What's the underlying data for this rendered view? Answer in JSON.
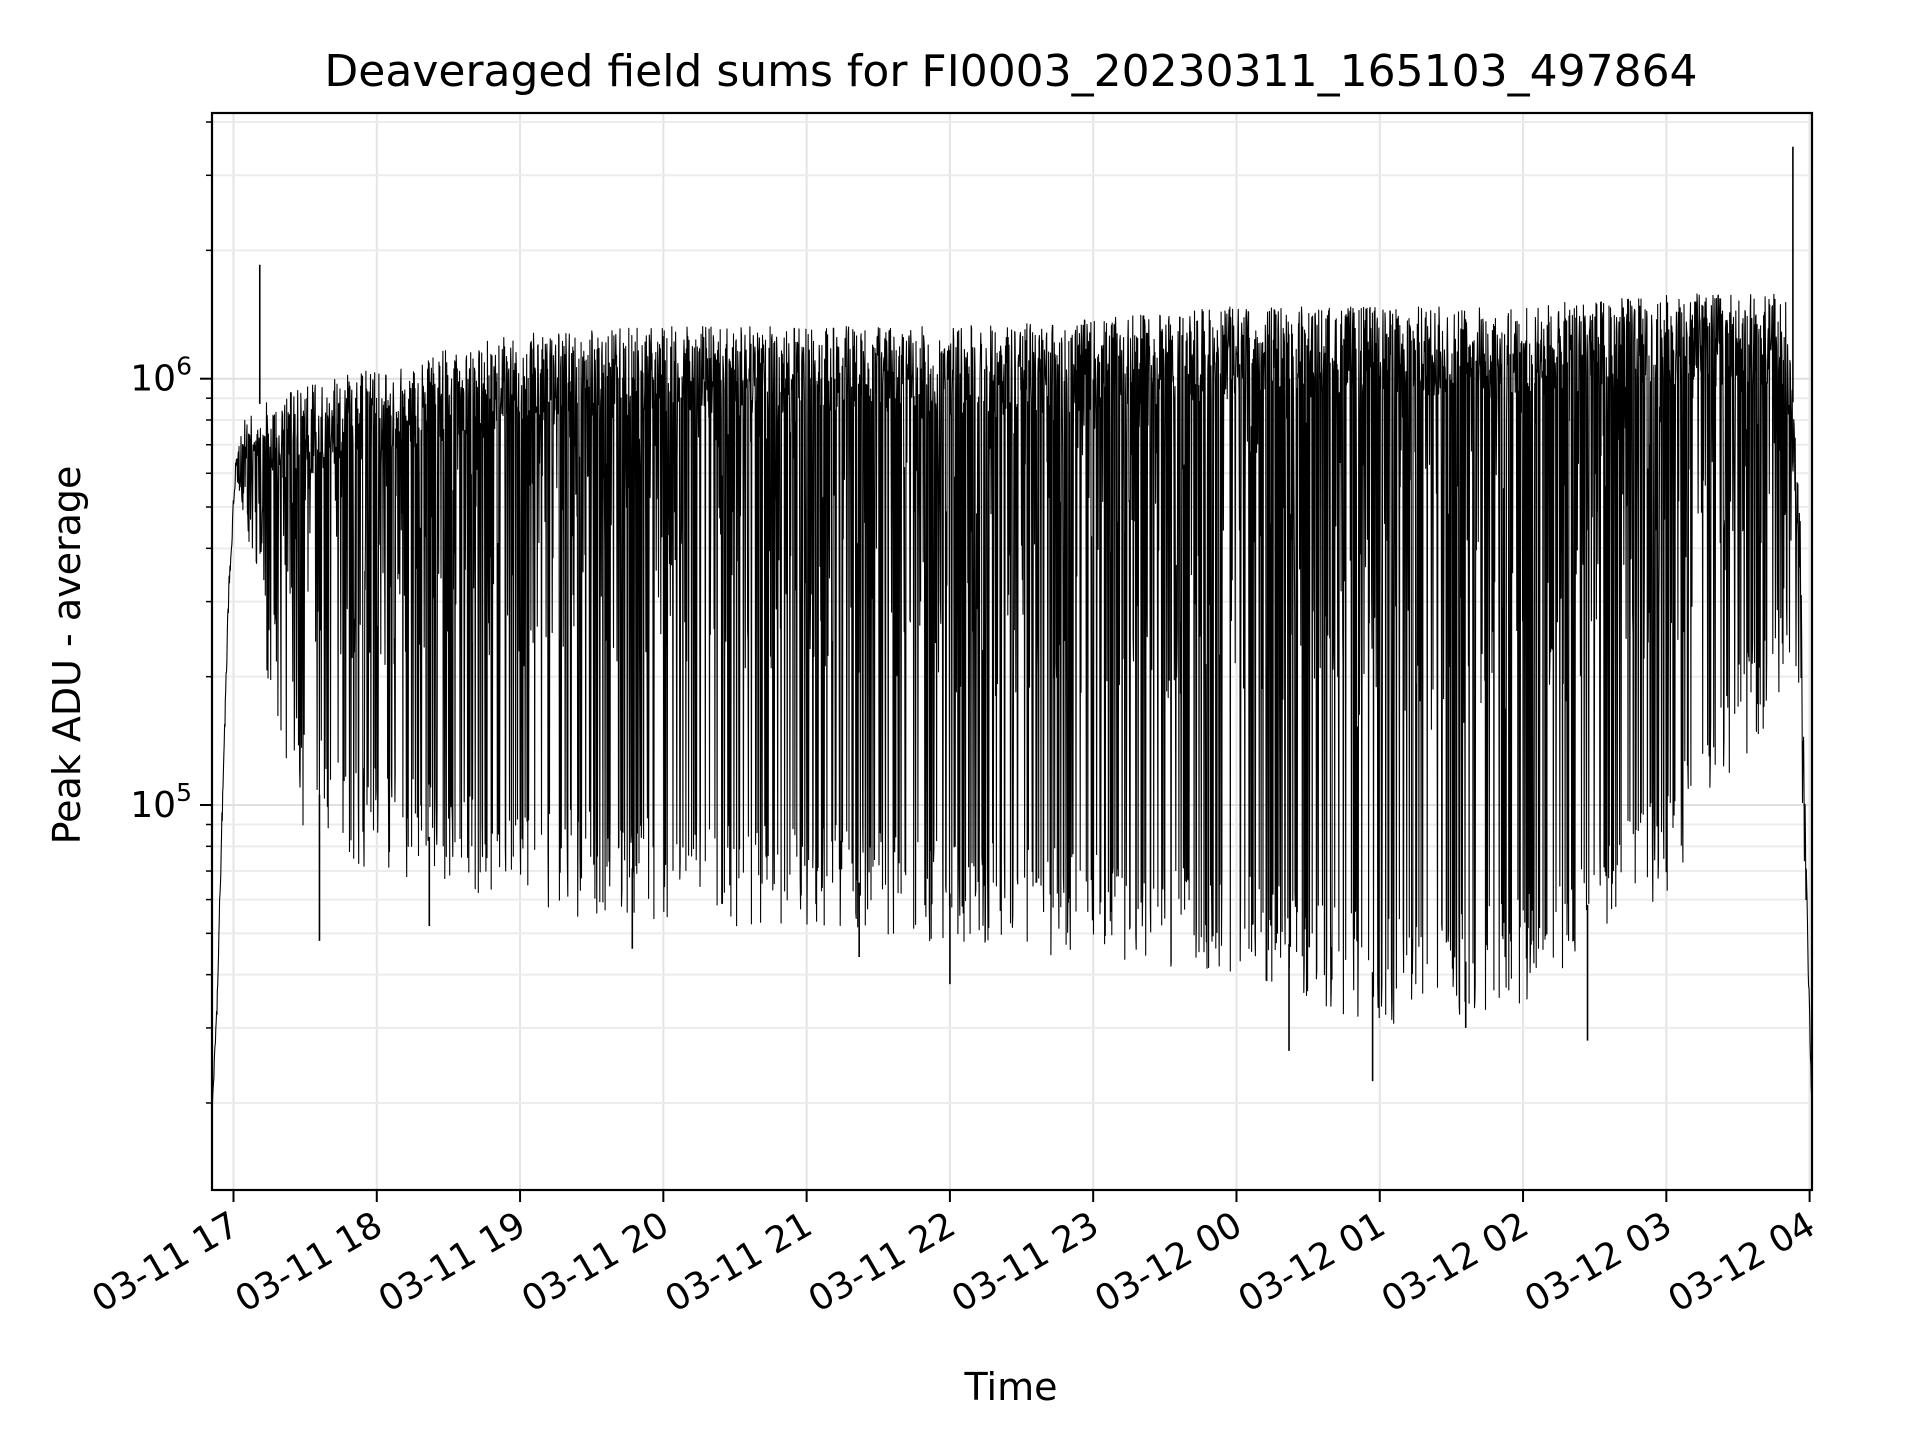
{
  "chart_data": {
    "type": "line",
    "title": "Deaveraged field sums for FI0003_20230311_165103_497864",
    "xlabel": "Time",
    "ylabel": "Peak ADU - average",
    "y_scale": "log",
    "ylim": [
      12500,
      4200000
    ],
    "xlim": [
      "2023-03-11 16:51",
      "2023-03-12 04:01"
    ],
    "grid": true,
    "line_color": "#000000",
    "x_ticks": [
      {
        "label": "03-11 17",
        "t": "2023-03-11 17:00"
      },
      {
        "label": "03-11 18",
        "t": "2023-03-11 18:00"
      },
      {
        "label": "03-11 19",
        "t": "2023-03-11 19:00"
      },
      {
        "label": "03-11 20",
        "t": "2023-03-11 20:00"
      },
      {
        "label": "03-11 21",
        "t": "2023-03-11 21:00"
      },
      {
        "label": "03-11 22",
        "t": "2023-03-11 22:00"
      },
      {
        "label": "03-11 23",
        "t": "2023-03-11 23:00"
      },
      {
        "label": "03-12 00",
        "t": "2023-03-12 00:00"
      },
      {
        "label": "03-12 01",
        "t": "2023-03-12 01:00"
      },
      {
        "label": "03-12 02",
        "t": "2023-03-12 02:00"
      },
      {
        "label": "03-12 03",
        "t": "2023-03-12 03:00"
      },
      {
        "label": "03-12 04",
        "t": "2023-03-12 04:00"
      }
    ],
    "y_ticks": [
      {
        "base": "10",
        "exp": "5",
        "value": 100000
      },
      {
        "base": "10",
        "exp": "6",
        "value": 1000000
      }
    ],
    "series": [
      {
        "envelope_times": [
          "2023-03-11 16:51",
          "2023-03-11 16:53",
          "2023-03-11 16:55",
          "2023-03-11 16:58",
          "2023-03-11 17:01",
          "2023-03-11 17:05",
          "2023-03-11 17:30",
          "2023-03-11 18:00",
          "2023-03-11 19:00",
          "2023-03-11 20:00",
          "2023-03-11 21:00",
          "2023-03-11 22:00",
          "2023-03-11 23:00",
          "2023-03-12 00:00",
          "2023-03-12 01:00",
          "2023-03-12 02:00",
          "2023-03-12 03:00",
          "2023-03-12 03:50",
          "2023-03-12 03:56",
          "2023-03-12 03:59",
          "2023-03-12 04:01"
        ],
        "upper_envelope": [
          19000,
          35000,
          90000,
          350000,
          650000,
          850000,
          950000,
          1050000,
          1250000,
          1300000,
          1300000,
          1300000,
          1350000,
          1450000,
          1450000,
          1450000,
          1550000,
          1550000,
          500000,
          60000,
          20000
        ],
        "lower_envelope": [
          19000,
          30000,
          80000,
          300000,
          600000,
          450000,
          110000,
          90000,
          75000,
          70000,
          68000,
          62000,
          58000,
          52000,
          40000,
          45000,
          80000,
          250000,
          150000,
          45000,
          19000
        ],
        "spikes": [
          {
            "t": "2023-03-11 17:11",
            "value": 1850000
          },
          {
            "t": "2023-03-11 17:36",
            "value": 48000
          },
          {
            "t": "2023-03-11 18:22",
            "value": 52000
          },
          {
            "t": "2023-03-11 19:47",
            "value": 46000
          },
          {
            "t": "2023-03-11 21:22",
            "value": 44000
          },
          {
            "t": "2023-03-11 22:00",
            "value": 38000
          },
          {
            "t": "2023-03-12 00:22",
            "value": 26500
          },
          {
            "t": "2023-03-12 00:57",
            "value": 22500
          },
          {
            "t": "2023-03-12 01:36",
            "value": 30000
          },
          {
            "t": "2023-03-12 02:27",
            "value": 28000
          },
          {
            "t": "2023-03-12 03:53",
            "value": 3500000
          }
        ]
      }
    ]
  }
}
